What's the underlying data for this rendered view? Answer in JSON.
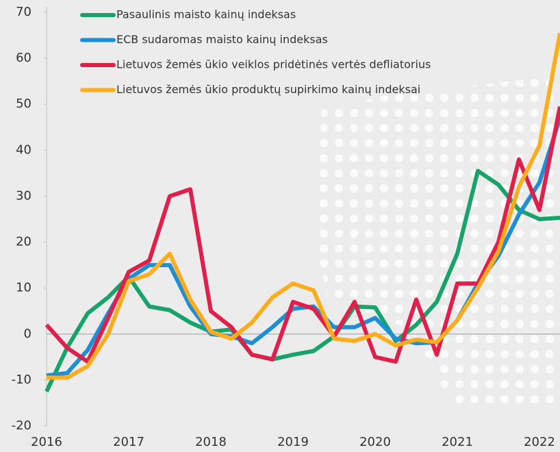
{
  "chart_data": {
    "type": "line",
    "categories": [
      "2016",
      null,
      null,
      null,
      "2017",
      null,
      null,
      null,
      "2018",
      null,
      null,
      null,
      "2019",
      null,
      null,
      null,
      "2020",
      null,
      null,
      null,
      "2021",
      null,
      null,
      null,
      "2022",
      null
    ],
    "series": [
      {
        "name": "Pasaulinis maisto kainų indeksas",
        "color": "#17a36a",
        "values": [
          -12.5,
          -3,
          4.5,
          8,
          12.5,
          6,
          5.2,
          2.5,
          0.5,
          1,
          -4.5,
          -5.5,
          -4.5,
          -3.7,
          -0.5,
          6,
          5.8,
          -1.5,
          2,
          7,
          17.5,
          35.5,
          32.5,
          27,
          25,
          25.3
        ]
      },
      {
        "name": "ECB sudaromas maisto kainų indeksas",
        "color": "#1e8fd5",
        "values": [
          -9,
          -8.5,
          -3.5,
          4.5,
          12,
          15,
          15,
          6,
          0,
          -0.5,
          -2,
          1.5,
          5.5,
          6,
          1.5,
          1.5,
          3.5,
          -1,
          -2,
          -1.8,
          3,
          11,
          17,
          26,
          33,
          47
        ]
      },
      {
        "name": "Lietuvos žemės ūkio veiklos pridėtinės vertės defliatorius",
        "color": "#e01f4b",
        "values": [
          2,
          -3,
          -6,
          3.5,
          13.5,
          16,
          30,
          31.5,
          5,
          1.5,
          -4.5,
          -5.5,
          7,
          5.5,
          -0.5,
          7,
          -5,
          -6,
          7.5,
          -4.5,
          11,
          11,
          20,
          38,
          27,
          49.5
        ]
      },
      {
        "name": "Lietuvos žemės ūkio produktų supirkimo kainų indeksai",
        "color": "#ffad1d",
        "values": [
          -9.5,
          -9.5,
          -7,
          0,
          11.5,
          13,
          17.5,
          7.5,
          0.5,
          -1,
          2.5,
          8,
          11,
          9.5,
          -1,
          -1.5,
          0,
          -2.5,
          -1.2,
          -1.8,
          3,
          10,
          18,
          32,
          41,
          65.5
        ]
      }
    ],
    "ylim": [
      -20,
      70
    ],
    "yticks": [
      -20,
      -10,
      0,
      10,
      20,
      30,
      40,
      50,
      60,
      70
    ],
    "legend": "upper left"
  }
}
